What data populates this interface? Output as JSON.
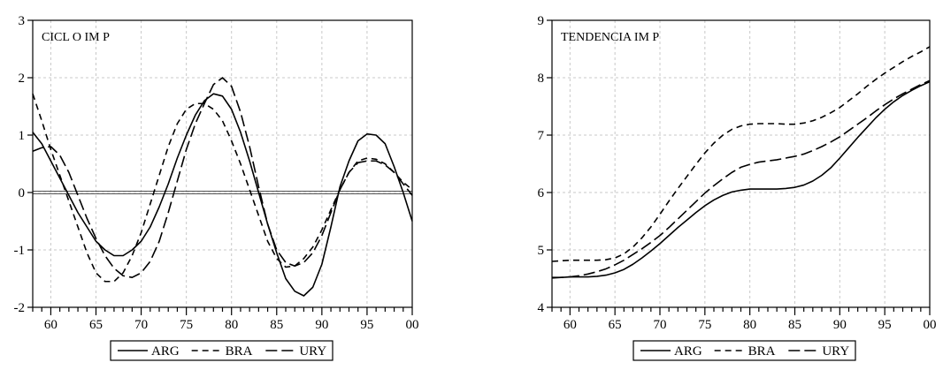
{
  "chart_data": [
    {
      "type": "line",
      "title": "CICL O IM P",
      "xlabel": "",
      "ylabel": "",
      "xlim": [
        1958,
        2000
      ],
      "ylim": [
        -2,
        3
      ],
      "yticks": [
        -2,
        -1,
        0,
        1,
        2,
        3
      ],
      "xtick_labels": [
        "60",
        "65",
        "70",
        "75",
        "80",
        "85",
        "90",
        "95",
        "00"
      ],
      "xticks": [
        1960,
        1965,
        1970,
        1975,
        1980,
        1985,
        1990,
        1995,
        2000
      ],
      "grid": true,
      "zero_line": true,
      "legend_position": "bottom",
      "x": [
        1958,
        1959,
        1960,
        1961,
        1962,
        1963,
        1964,
        1965,
        1966,
        1967,
        1968,
        1969,
        1970,
        1971,
        1972,
        1973,
        1974,
        1975,
        1976,
        1977,
        1978,
        1979,
        1980,
        1981,
        1982,
        1983,
        1984,
        1985,
        1986,
        1987,
        1988,
        1989,
        1990,
        1991,
        1992,
        1993,
        1994,
        1995,
        1996,
        1997,
        1998,
        1999,
        2000
      ],
      "series": [
        {
          "name": "ARG",
          "dash": "solid",
          "values": [
            1.05,
            0.85,
            0.55,
            0.25,
            -0.05,
            -0.35,
            -0.6,
            -0.85,
            -1.0,
            -1.1,
            -1.1,
            -1.0,
            -0.85,
            -0.6,
            -0.25,
            0.15,
            0.6,
            1.0,
            1.35,
            1.6,
            1.72,
            1.68,
            1.45,
            1.05,
            0.55,
            0.0,
            -0.55,
            -1.05,
            -1.5,
            -1.72,
            -1.8,
            -1.65,
            -1.25,
            -0.6,
            0.1,
            0.55,
            0.9,
            1.02,
            1.0,
            0.85,
            0.45,
            0.0,
            -0.5
          ]
        },
        {
          "name": "BRA",
          "dash": "dashed",
          "values": [
            1.72,
            1.25,
            0.75,
            0.3,
            -0.15,
            -0.6,
            -1.05,
            -1.4,
            -1.55,
            -1.55,
            -1.4,
            -1.1,
            -0.7,
            -0.2,
            0.3,
            0.8,
            1.2,
            1.45,
            1.55,
            1.55,
            1.45,
            1.25,
            0.9,
            0.5,
            0.05,
            -0.4,
            -0.85,
            -1.15,
            -1.3,
            -1.28,
            -1.15,
            -0.95,
            -0.65,
            -0.3,
            0.05,
            0.35,
            0.55,
            0.6,
            0.58,
            0.5,
            0.35,
            0.18,
            0.05
          ]
        },
        {
          "name": "URY",
          "dash": "longdash",
          "values": [
            0.72,
            0.78,
            0.8,
            0.65,
            0.35,
            -0.05,
            -0.45,
            -0.8,
            -1.1,
            -1.32,
            -1.45,
            -1.48,
            -1.4,
            -1.2,
            -0.85,
            -0.35,
            0.2,
            0.75,
            1.2,
            1.55,
            1.88,
            2.0,
            1.85,
            1.4,
            0.8,
            0.1,
            -0.55,
            -1.0,
            -1.22,
            -1.28,
            -1.22,
            -1.05,
            -0.75,
            -0.35,
            0.05,
            0.35,
            0.52,
            0.55,
            0.55,
            0.48,
            0.35,
            0.15,
            -0.05
          ]
        }
      ]
    },
    {
      "type": "line",
      "title": "TENDENCIA IM P",
      "xlabel": "",
      "ylabel": "",
      "xlim": [
        1958,
        2000
      ],
      "ylim": [
        4,
        9
      ],
      "yticks": [
        4,
        5,
        6,
        7,
        8,
        9
      ],
      "xtick_labels": [
        "60",
        "65",
        "70",
        "75",
        "80",
        "85",
        "90",
        "95",
        "00"
      ],
      "xticks": [
        1960,
        1965,
        1970,
        1975,
        1980,
        1985,
        1990,
        1995,
        2000
      ],
      "grid": true,
      "zero_line": false,
      "legend_position": "bottom",
      "x": [
        1958,
        1959,
        1960,
        1961,
        1962,
        1963,
        1964,
        1965,
        1966,
        1967,
        1968,
        1969,
        1970,
        1971,
        1972,
        1973,
        1974,
        1975,
        1976,
        1977,
        1978,
        1979,
        1980,
        1981,
        1982,
        1983,
        1984,
        1985,
        1986,
        1987,
        1988,
        1989,
        1990,
        1991,
        1992,
        1993,
        1994,
        1995,
        1996,
        1997,
        1998,
        1999,
        2000
      ],
      "series": [
        {
          "name": "ARG",
          "dash": "solid",
          "values": [
            4.52,
            4.52,
            4.53,
            4.53,
            4.53,
            4.54,
            4.56,
            4.6,
            4.66,
            4.75,
            4.86,
            4.98,
            5.11,
            5.25,
            5.39,
            5.52,
            5.65,
            5.77,
            5.87,
            5.95,
            6.01,
            6.04,
            6.06,
            6.06,
            6.06,
            6.06,
            6.07,
            6.09,
            6.13,
            6.2,
            6.3,
            6.43,
            6.6,
            6.78,
            6.96,
            7.13,
            7.3,
            7.45,
            7.58,
            7.69,
            7.78,
            7.86,
            7.93
          ]
        },
        {
          "name": "BRA",
          "dash": "dashed",
          "values": [
            4.8,
            4.81,
            4.82,
            4.82,
            4.82,
            4.82,
            4.83,
            4.86,
            4.93,
            5.05,
            5.21,
            5.4,
            5.62,
            5.85,
            6.07,
            6.28,
            6.49,
            6.69,
            6.86,
            7.0,
            7.1,
            7.16,
            7.19,
            7.2,
            7.2,
            7.2,
            7.19,
            7.19,
            7.21,
            7.25,
            7.31,
            7.39,
            7.48,
            7.6,
            7.72,
            7.85,
            7.97,
            8.08,
            8.18,
            8.28,
            8.37,
            8.45,
            8.54
          ]
        },
        {
          "name": "URY",
          "dash": "longdash",
          "values": [
            4.51,
            4.52,
            4.53,
            4.55,
            4.58,
            4.62,
            4.67,
            4.74,
            4.82,
            4.92,
            5.02,
            5.13,
            5.25,
            5.39,
            5.54,
            5.69,
            5.84,
            5.99,
            6.12,
            6.24,
            6.35,
            6.44,
            6.49,
            6.53,
            6.55,
            6.57,
            6.6,
            6.63,
            6.67,
            6.73,
            6.8,
            6.88,
            6.97,
            7.08,
            7.19,
            7.3,
            7.42,
            7.53,
            7.63,
            7.72,
            7.8,
            7.88,
            7.95
          ]
        }
      ]
    }
  ]
}
